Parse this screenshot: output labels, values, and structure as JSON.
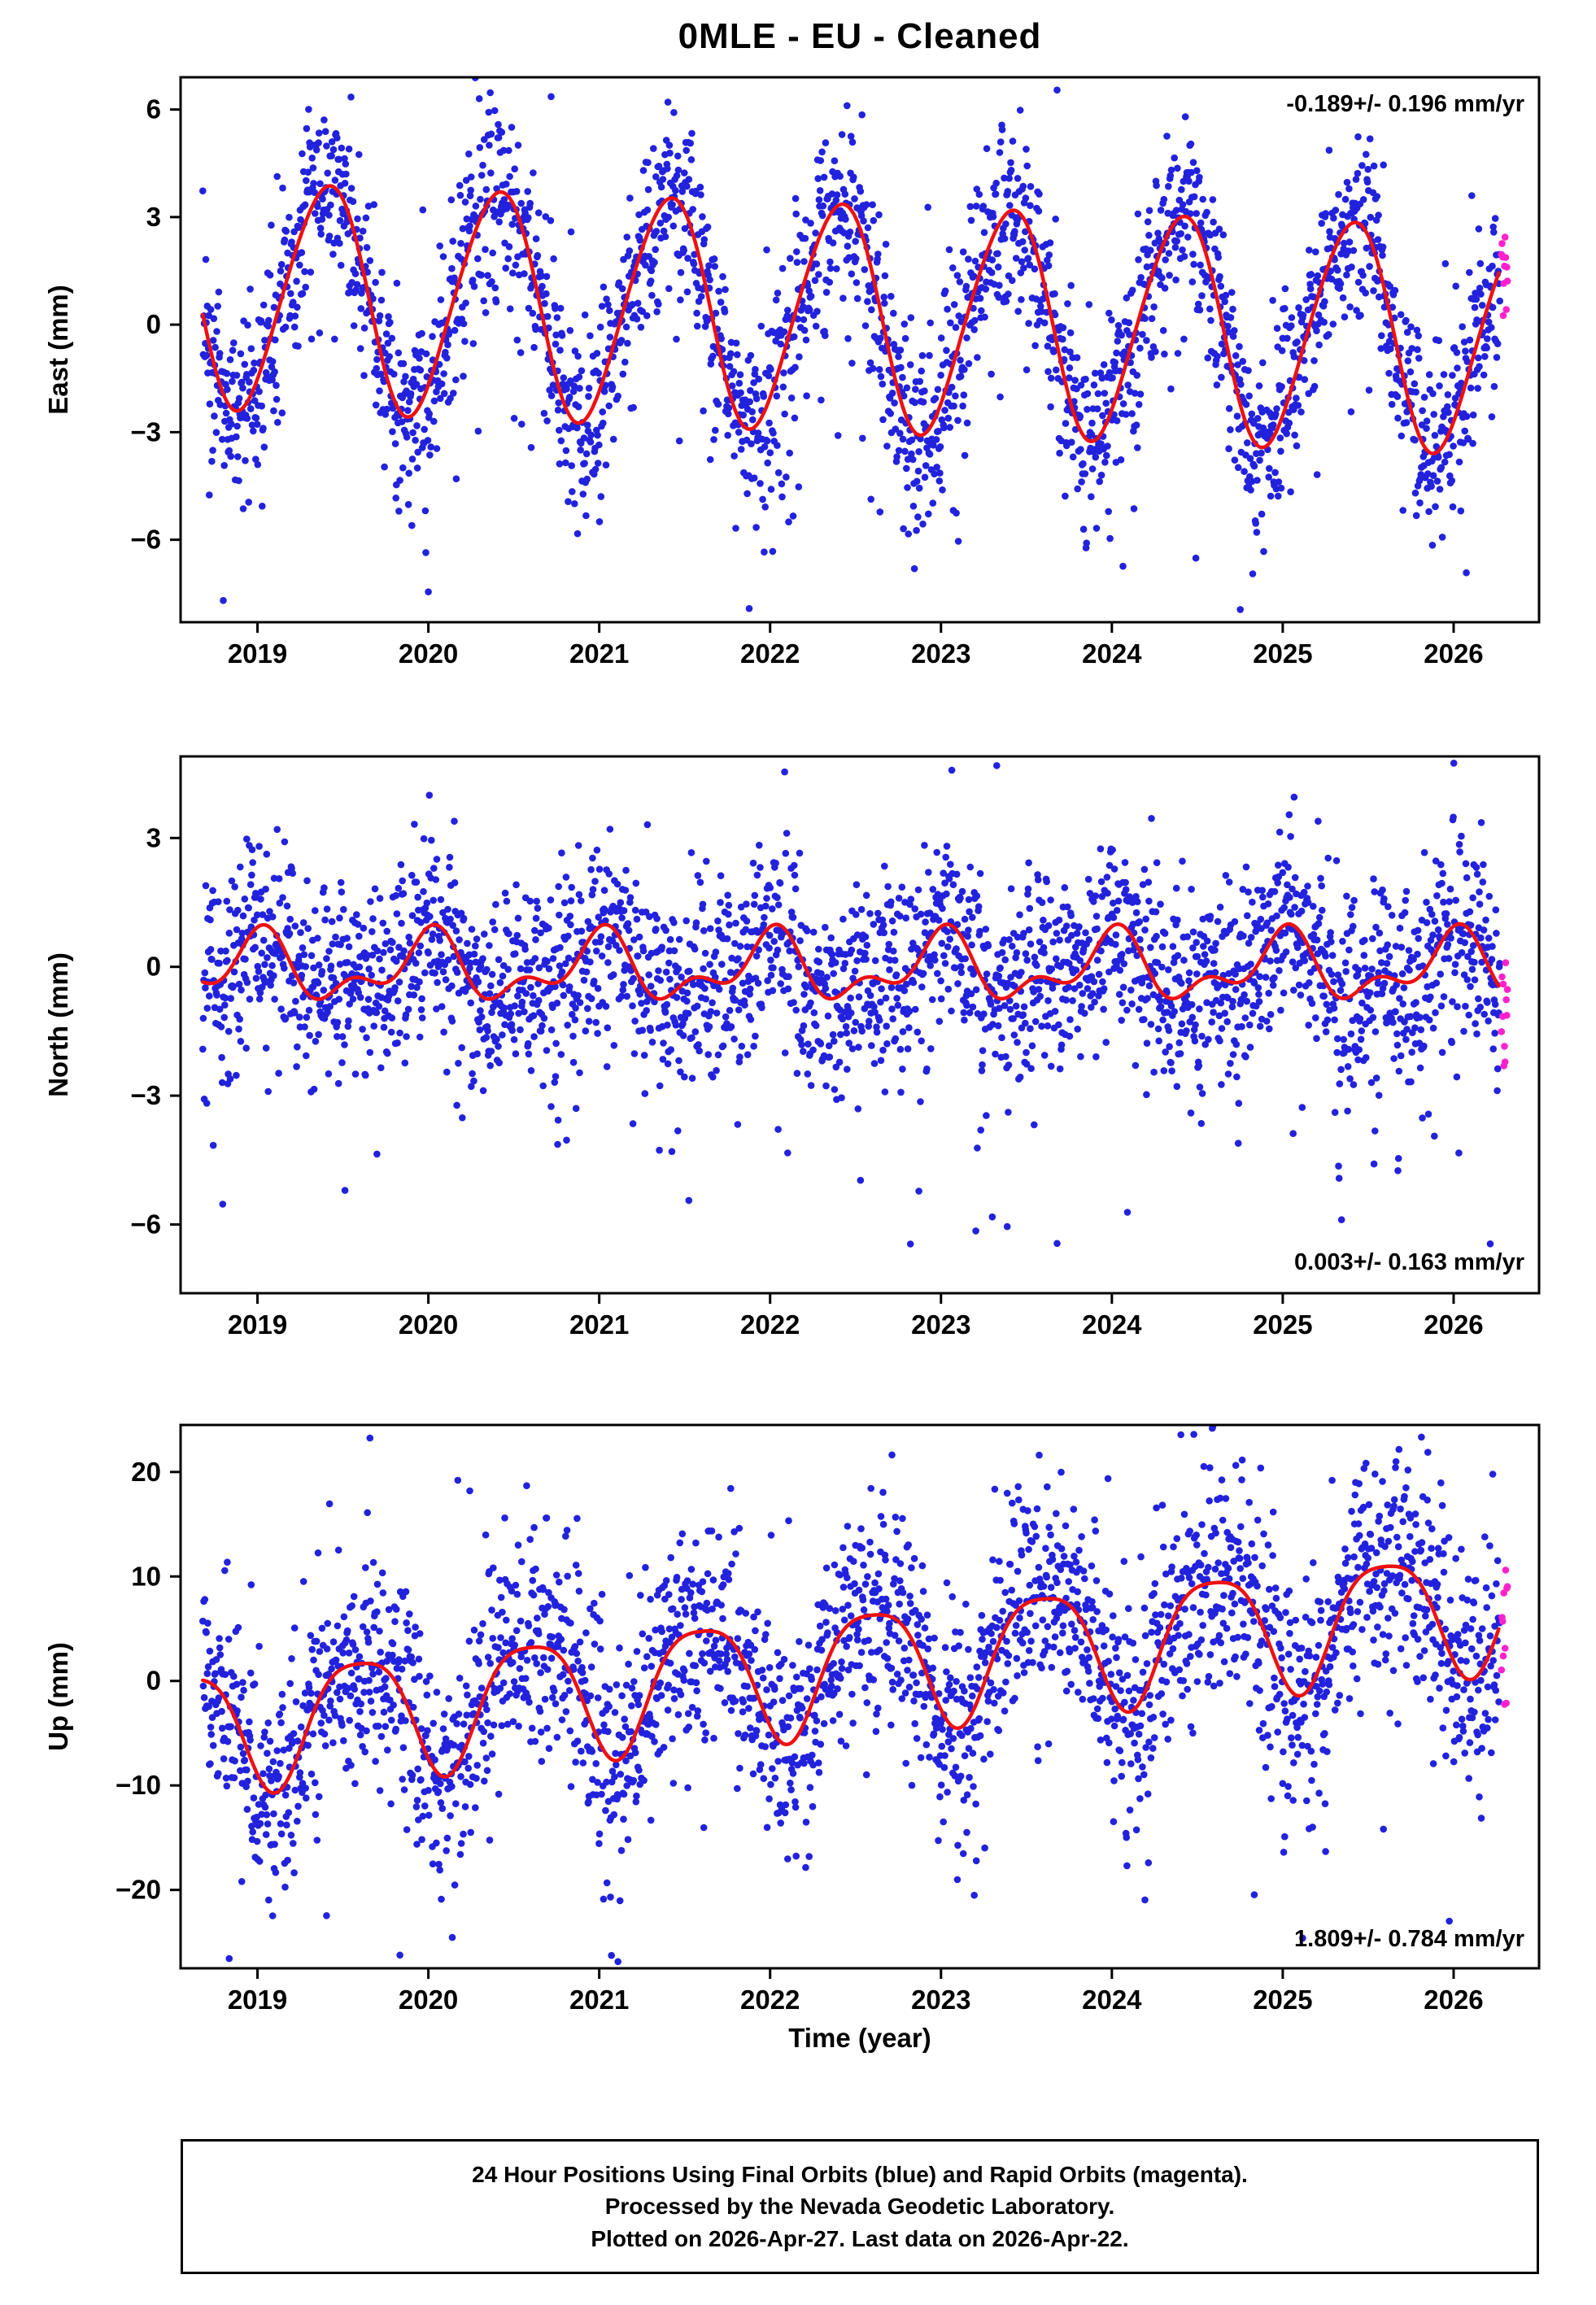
{
  "title": "0MLE  - EU - Cleaned",
  "xlabel": "Time (year)",
  "colors": {
    "final": "#2222dd",
    "rapid": "#ff22cc",
    "model": "#ee1111",
    "frame": "#000000"
  },
  "footer": {
    "line1": "24 Hour Positions Using Final Orbits (blue) and Rapid Orbits (magenta).",
    "line2": "Processed by the Nevada Geodetic Laboratory.",
    "line3": "Plotted on 2026-Apr-27. Last data on 2026-Apr-22."
  },
  "chart_data": [
    {
      "type": "scatter",
      "ylabel": "East (mm)",
      "rate_label": "-0.189+/- 0.196 mm/yr",
      "rate_label_position": "top-right",
      "xlim": [
        2018.55,
        2026.5
      ],
      "ylim": [
        -8.3,
        6.9
      ],
      "xticks": [
        2019,
        2020,
        2021,
        2022,
        2023,
        2024,
        2025,
        2026
      ],
      "yticks": [
        -6,
        -3,
        0,
        3,
        6
      ],
      "series": [
        {
          "name": "final-orbits-daily-positions",
          "color_key": "final"
        },
        {
          "name": "rapid-orbits-daily-positions",
          "color_key": "rapid"
        },
        {
          "name": "seasonal-model-fit",
          "color_key": "model"
        }
      ],
      "model": {
        "tref": 2018.6,
        "mean": 0.9,
        "trend": -0.17,
        "a1": 3.15,
        "ph1": 0.4,
        "a2": 0.25,
        "ph2": 0.05
      },
      "scatter": {
        "start": 2018.68,
        "end": 2026.27,
        "n": 2600,
        "sigma": 1.25,
        "outlier_frac": 0.05,
        "outlier_scale": 1.9,
        "outlier_neg_bias": 0.75,
        "seed": 7
      },
      "rapid": {
        "start": 2026.28,
        "end": 2026.315,
        "n": 11,
        "sigma": 1.0,
        "seed": 17
      }
    },
    {
      "type": "scatter",
      "ylabel": "North (mm)",
      "rate_label": "0.003+/- 0.163 mm/yr",
      "rate_label_position": "bottom-right",
      "xlim": [
        2018.55,
        2026.5
      ],
      "ylim": [
        -7.6,
        4.9
      ],
      "xticks": [
        2019,
        2020,
        2021,
        2022,
        2023,
        2024,
        2025,
        2026
      ],
      "yticks": [
        -6,
        -3,
        0,
        3
      ],
      "series": [
        {
          "name": "final-orbits-daily-positions",
          "color_key": "final"
        },
        {
          "name": "rapid-orbits-daily-positions",
          "color_key": "rapid"
        },
        {
          "name": "seasonal-model-fit",
          "color_key": "model"
        }
      ],
      "model": {
        "tref": 2018.6,
        "mean": -0.05,
        "trend": 0.003,
        "a1": 0.65,
        "ph1": 0.0,
        "a2": 0.4,
        "ph2": 0.05
      },
      "scatter": {
        "start": 2018.68,
        "end": 2026.27,
        "n": 2600,
        "sigma": 1.15,
        "outlier_frac": 0.04,
        "outlier_scale": 1.9,
        "outlier_neg_bias": 0.8,
        "seed": 8
      },
      "rapid": {
        "start": 2026.28,
        "end": 2026.315,
        "n": 11,
        "sigma": 0.9,
        "seed": 18
      }
    },
    {
      "type": "scatter",
      "ylabel": "Up (mm)",
      "rate_label": "1.809+/- 0.784 mm/yr",
      "rate_label_position": "bottom-right",
      "xlim": [
        2018.55,
        2026.5
      ],
      "ylim": [
        -27.5,
        24.5
      ],
      "xticks": [
        2019,
        2020,
        2021,
        2022,
        2023,
        2024,
        2025,
        2026
      ],
      "yticks": [
        -20,
        -10,
        0,
        10,
        20
      ],
      "series": [
        {
          "name": "final-orbits-daily-positions",
          "color_key": "final"
        },
        {
          "name": "rapid-orbits-daily-positions",
          "color_key": "rapid"
        },
        {
          "name": "seasonal-model-fit",
          "color_key": "model"
        }
      ],
      "model": {
        "tref": 2018.6,
        "mean": -4.5,
        "trend": 1.55,
        "a1": 5.8,
        "ph1": 0.6,
        "a2": 1.2,
        "ph2": 0.35
      },
      "scatter": {
        "start": 2018.68,
        "end": 2026.27,
        "n": 2600,
        "sigma": 5.3,
        "outlier_frac": 0.04,
        "outlier_scale": 1.7,
        "outlier_neg_bias": 0.5,
        "seed": 9
      },
      "rapid": {
        "start": 2026.28,
        "end": 2026.315,
        "n": 11,
        "sigma": 4.2,
        "seed": 19
      }
    }
  ]
}
